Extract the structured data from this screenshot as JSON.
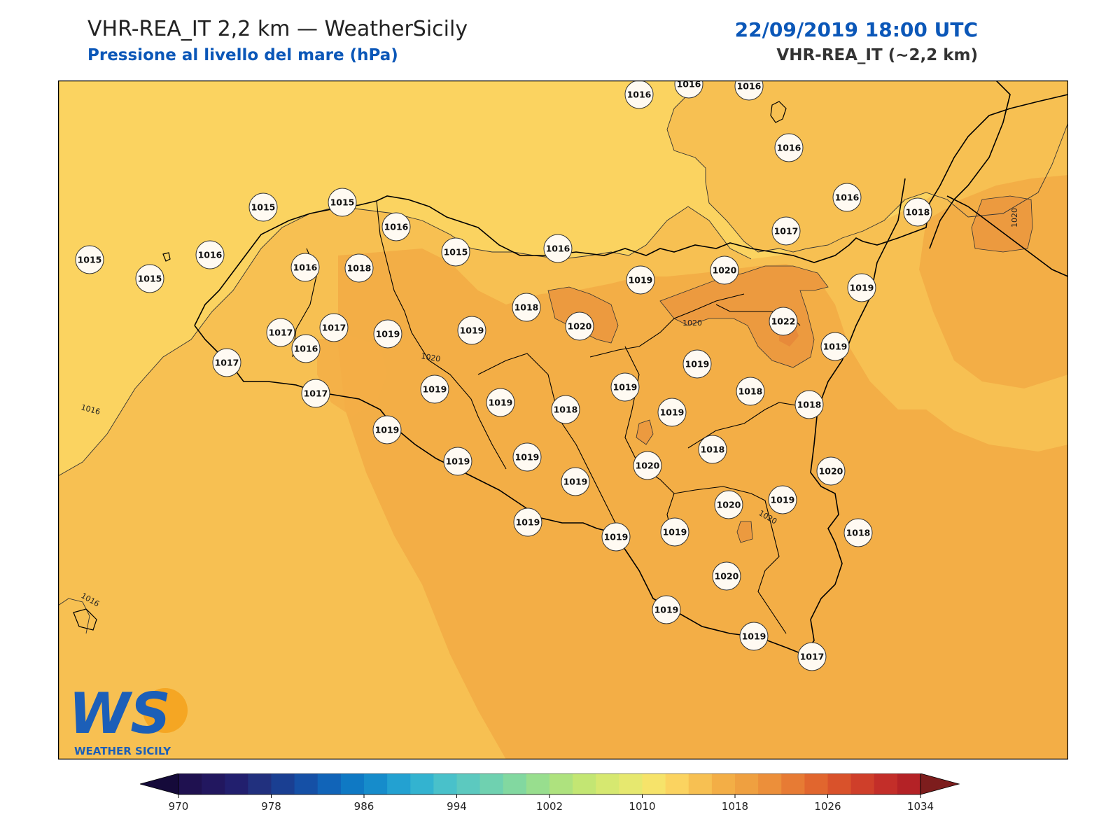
{
  "header": {
    "title": "VHR-REA_IT 2,2 km — WeatherSicily",
    "subtitle": "Pressione al livello del mare (hPa)",
    "datetime": "22/09/2019 18:00 UTC",
    "model": "VHR-REA_IT (~2,2 km)"
  },
  "logo": {
    "letters": "WS",
    "caption": "WEATHER SICILY"
  },
  "colors": {
    "background_field": "#f7c052",
    "sea_north": "#fbd360",
    "inland_high": "#f3ae46",
    "peak_high": "#ec9a3f",
    "title_blue": "#0b57b8"
  },
  "contour_labels": [
    "1016",
    "1016",
    "1020",
    "1020",
    "1020",
    "1020"
  ],
  "stations": [
    {
      "value": "1016"
    },
    {
      "value": "1016"
    },
    {
      "value": "1016"
    },
    {
      "value": "1016"
    },
    {
      "value": "1016"
    },
    {
      "value": "1018"
    },
    {
      "value": "1017"
    },
    {
      "value": "1015"
    },
    {
      "value": "1015"
    },
    {
      "value": "1016"
    },
    {
      "value": "1015"
    },
    {
      "value": "1016"
    },
    {
      "value": "1015"
    },
    {
      "value": "1016"
    },
    {
      "value": "1018"
    },
    {
      "value": "1015"
    },
    {
      "value": "1016"
    },
    {
      "value": "1016"
    },
    {
      "value": "1019"
    },
    {
      "value": "1020"
    },
    {
      "value": "1019"
    },
    {
      "value": "1022"
    },
    {
      "value": "1018"
    },
    {
      "value": "1017"
    },
    {
      "value": "1017"
    },
    {
      "value": "1019"
    },
    {
      "value": "1019"
    },
    {
      "value": "1020"
    },
    {
      "value": "1019"
    },
    {
      "value": "1017"
    },
    {
      "value": "1017"
    },
    {
      "value": "1019"
    },
    {
      "value": "1019"
    },
    {
      "value": "1019"
    },
    {
      "value": "1019"
    },
    {
      "value": "1018"
    },
    {
      "value": "1018"
    },
    {
      "value": "1019"
    },
    {
      "value": "1018"
    },
    {
      "value": "1019"
    },
    {
      "value": "1019"
    },
    {
      "value": "1020"
    },
    {
      "value": "1019"
    },
    {
      "value": "1018"
    },
    {
      "value": "1020"
    },
    {
      "value": "1019"
    },
    {
      "value": "1019"
    },
    {
      "value": "1019"
    },
    {
      "value": "1019"
    },
    {
      "value": "1018"
    },
    {
      "value": "1020"
    },
    {
      "value": "1020"
    },
    {
      "value": "1019"
    },
    {
      "value": "1019"
    },
    {
      "value": "1019"
    },
    {
      "value": "1017"
    }
  ],
  "colorbar": {
    "min": 970,
    "max": 1034,
    "step": 2,
    "tick_labels": [
      "970",
      "978",
      "986",
      "994",
      "1002",
      "1010",
      "1018",
      "1026",
      "1034"
    ],
    "colors": [
      "#1f1150",
      "#22175f",
      "#221f6e",
      "#21307e",
      "#1a3f92",
      "#1550a6",
      "#1164b8",
      "#0f79c4",
      "#168ccb",
      "#23a1d1",
      "#33b3d0",
      "#49c1ca",
      "#5cc9bf",
      "#6fd1b0",
      "#82d8a0",
      "#98de8e",
      "#aee27e",
      "#c3e673",
      "#d6e870",
      "#e6e86f",
      "#f6e36a",
      "#fbd360",
      "#f7c052",
      "#f3ae46",
      "#efa040",
      "#ec8f3a",
      "#e77b34",
      "#e1662e",
      "#d9522b",
      "#cf3f2a",
      "#c32e29",
      "#b42226"
    ],
    "under_color": "#150a3a",
    "over_color": "#7d1d1d"
  }
}
